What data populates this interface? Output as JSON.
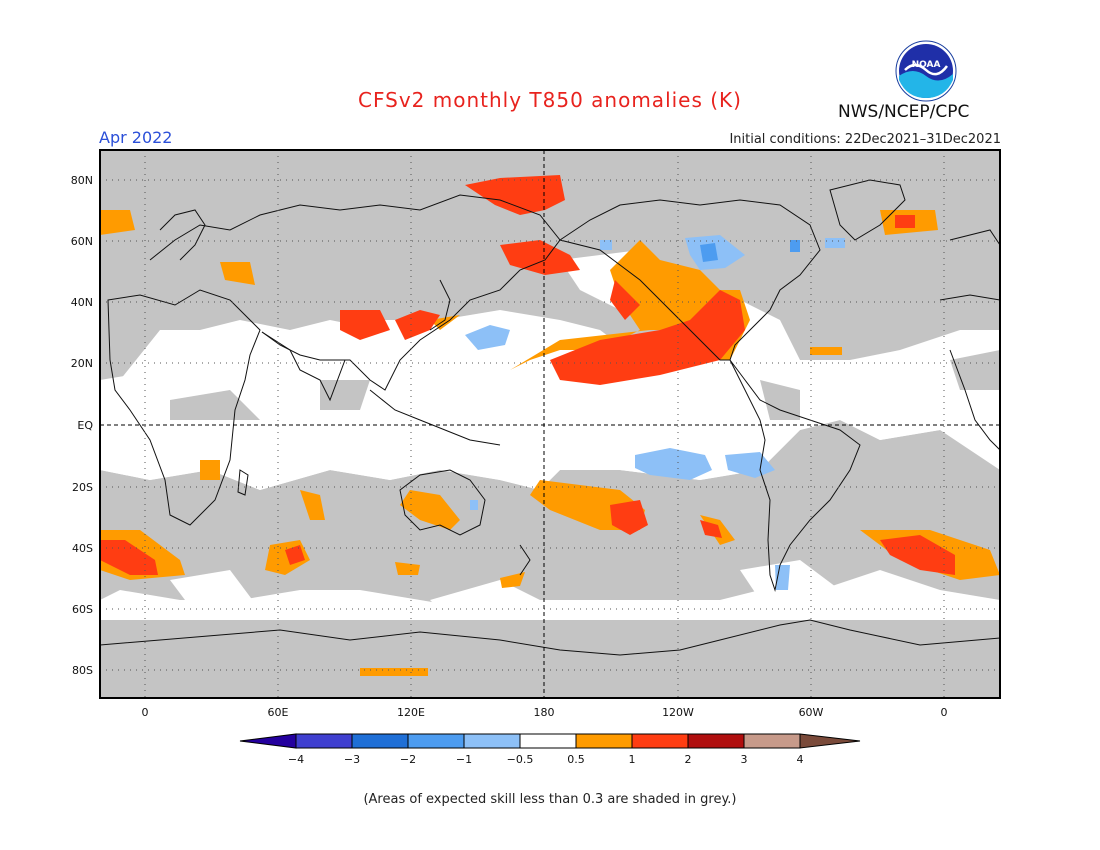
{
  "header": {
    "title": "CFSv2 monthly T850 anomalies (K)",
    "month": "Apr 2022",
    "initial_conditions": "Initial conditions: 22Dec2021–31Dec2021",
    "agency": "NWS/NCEP/CPC",
    "logo_text": "NOAA"
  },
  "axes": {
    "lat_labels": [
      "80N",
      "60N",
      "40N",
      "20N",
      "EQ",
      "20S",
      "40S",
      "60S",
      "80S"
    ],
    "lon_labels": [
      "0",
      "60E",
      "120E",
      "180",
      "120W",
      "60W",
      "0"
    ]
  },
  "colorbar": {
    "labels": [
      "−4",
      "−3",
      "−2",
      "−1",
      "−0.5",
      "0.5",
      "1",
      "2",
      "3",
      "4"
    ],
    "colors": [
      "#24009e",
      "#3f3fcf",
      "#1f6fd6",
      "#4d9cf0",
      "#8dc0f7",
      "#ffffff",
      "#ff9b00",
      "#ff3d12",
      "#b00e0e",
      "#c79a8a",
      "#7a4a3a"
    ]
  },
  "legend": {
    "colors": {
      "grey": "#c4c4c4",
      "neutral": "#ffffff"
    }
  },
  "footnote": "(Areas of expected skill less than 0.3 are shaded in grey.)"
}
